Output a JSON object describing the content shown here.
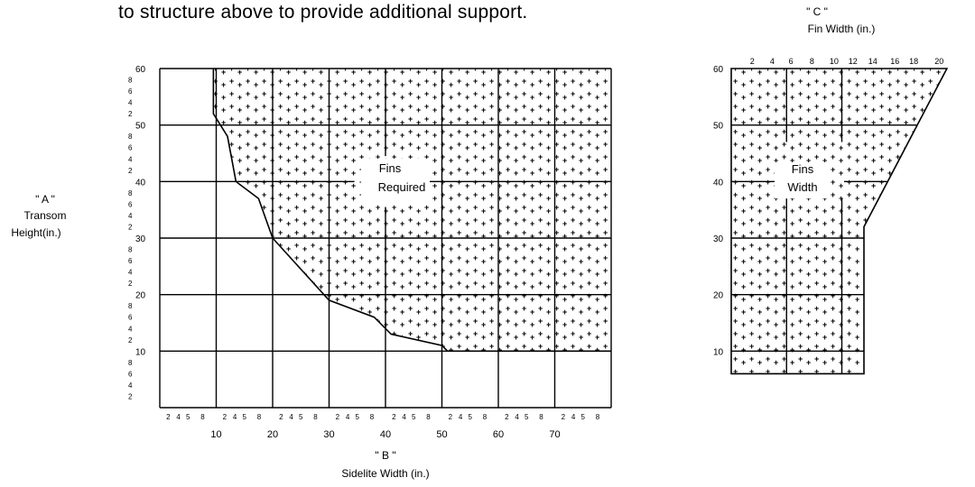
{
  "header": {
    "text": "to structure above to provide additional support."
  },
  "chart_b": {
    "title_line1": "\" B \"",
    "title_line2": "Sidelite Width (in.)",
    "y_label_line1": "\" A \"",
    "y_label_line2": "Transom",
    "y_label_line3": "Height(in.)",
    "region_label_line1": "Fins",
    "region_label_line2": "Required",
    "x_major_ticks": [
      "10",
      "20",
      "30",
      "40",
      "50",
      "60",
      "70"
    ],
    "x_minor_ticks": [
      "2",
      "4",
      "5",
      "8"
    ],
    "y_major_ticks": [
      "60",
      "50",
      "40",
      "30",
      "20",
      "10"
    ],
    "y_minor_ticks": [
      "8",
      "6",
      "4",
      "2"
    ],
    "xlim": [
      0,
      80
    ],
    "ylim": [
      0,
      60
    ]
  },
  "chart_c": {
    "title_line1": "\" C \"",
    "title_line2": "Fin Width (in.)",
    "region_label_line1": "Fins",
    "region_label_line2": "Width",
    "x_ticks": [
      "2",
      "4",
      "6",
      "8",
      "10",
      "12",
      "14",
      "16",
      "18",
      "20"
    ],
    "y_major_ticks": [
      "60",
      "50",
      "40",
      "30",
      "20",
      "10"
    ]
  },
  "chart_data": [
    {
      "type": "area",
      "title": "\" B \" Sidelite Width (in.)",
      "xlabel": "\" B \" Sidelite Width (in.)",
      "ylabel": "\" A \" Transom Height(in.)",
      "xlim": [
        0,
        80
      ],
      "ylim": [
        0,
        60
      ],
      "boundary": [
        {
          "x": 9.5,
          "y": 60
        },
        {
          "x": 9.5,
          "y": 52
        },
        {
          "x": 12,
          "y": 48
        },
        {
          "x": 13.5,
          "y": 40
        },
        {
          "x": 17.5,
          "y": 37
        },
        {
          "x": 20,
          "y": 30
        },
        {
          "x": 30,
          "y": 19
        },
        {
          "x": 38,
          "y": 16
        },
        {
          "x": 41,
          "y": 13
        },
        {
          "x": 50,
          "y": 11
        },
        {
          "x": 51,
          "y": 10
        },
        {
          "x": 80,
          "y": 10
        }
      ],
      "region_label": "Fins Required"
    },
    {
      "type": "area",
      "title": "\" C \" Fin Width (in.)",
      "xlabel": "\" C \" Fin Width (in.)",
      "xlim": [
        0,
        20
      ],
      "ylim": [
        0,
        60
      ],
      "boundary": [
        {
          "x": 0,
          "y": 60
        },
        {
          "x": 19.5,
          "y": 60
        },
        {
          "x": 12,
          "y": 32
        },
        {
          "x": 12,
          "y": 6
        },
        {
          "x": 0,
          "y": 6
        }
      ],
      "region_label": "Fins Width"
    }
  ]
}
